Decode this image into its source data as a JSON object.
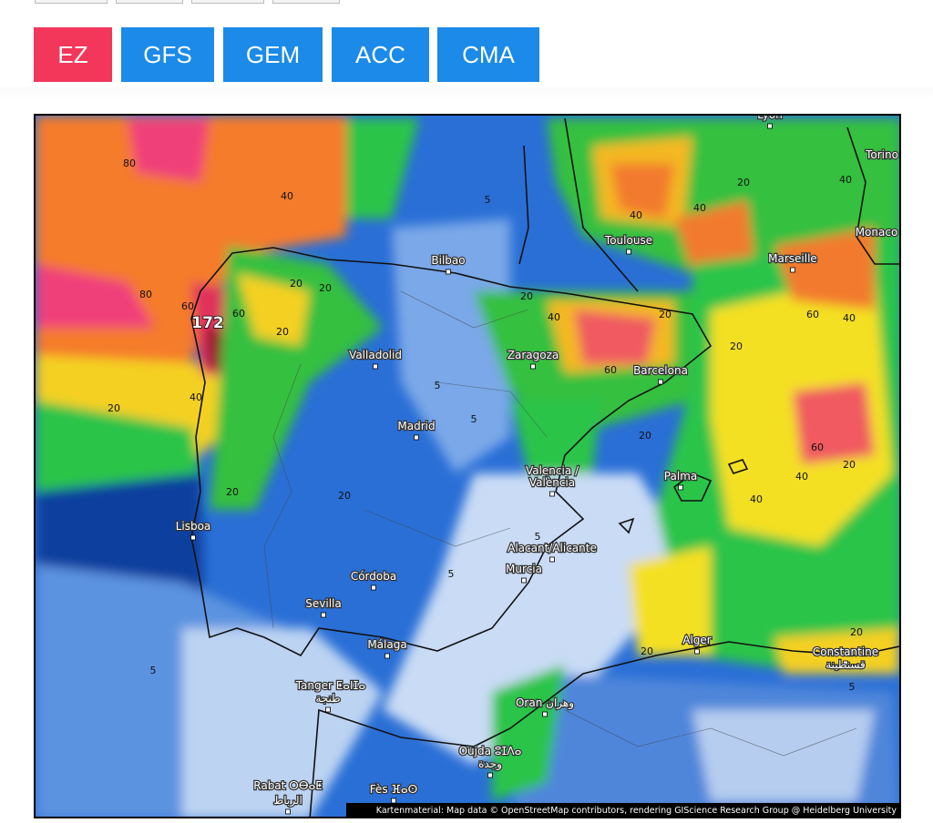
{
  "tabs": [
    {
      "label": "EZ",
      "active": true
    },
    {
      "label": "GFS",
      "active": false
    },
    {
      "label": "GEM",
      "active": false
    },
    {
      "label": "ACC",
      "active": false
    },
    {
      "label": "CMA",
      "active": false
    }
  ],
  "map": {
    "places": [
      "Lyon",
      "Torino",
      "Toulouse",
      "Monaco",
      "Marseille",
      "Bilbao",
      "Zaragoza",
      "Barcelona",
      "Valladolid",
      "Madrid",
      "Valencia /",
      "València",
      "Palma",
      "Lisboa",
      "Alacant/Alicante",
      "Murcia",
      "Córdoba",
      "Sevilla",
      "Málaga",
      "Alger",
      "Constantine",
      "قسنطينة",
      "Tanger ⵟⴰⵏⵊⴰ",
      "طنجة",
      "Oran وهران",
      "Oujda ⵓⵊⴷⴰ",
      "وجدة",
      "Rabat ⵔⴱⴰⵟ",
      "الرباط",
      "Fès ⴼⴰⵙ"
    ],
    "peak_label": 172,
    "contour_labels": [
      80,
      40,
      80,
      60,
      60,
      20,
      20,
      20,
      40,
      20,
      5,
      40,
      20,
      40,
      40,
      20,
      40,
      20,
      60,
      5,
      5,
      20,
      60,
      40,
      20,
      60,
      40,
      40,
      20,
      20,
      20,
      5,
      5,
      5,
      20,
      5,
      20
    ],
    "attribution": "Kartenmaterial: Map data © OpenStreetMap contributors, rendering GIScience Research Group @ Heidelberg University"
  }
}
